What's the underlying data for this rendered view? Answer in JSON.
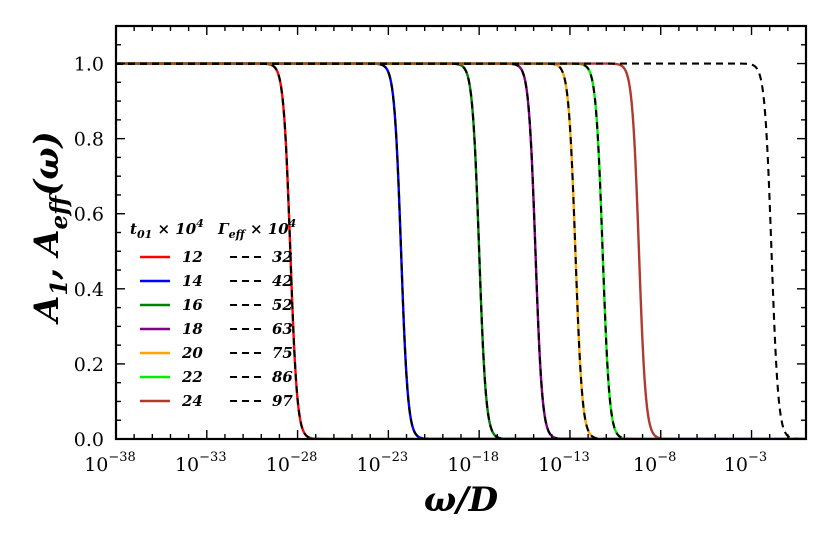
{
  "chart_data": {
    "type": "line",
    "xscale": "log10",
    "xlabel": "ω/D",
    "ylabel_main": "A",
    "ylabel_sub1": "1",
    "ylabel_mid": ", A",
    "ylabel_sub2": "eff",
    "ylabel_tail": "(ω)",
    "x_log_range": [
      -38,
      0
    ],
    "ylim": [
      0,
      1.1
    ],
    "x_tick_exponents": [
      "−38",
      "−33",
      "−28",
      "−23",
      "−18",
      "−13",
      "−8",
      "−3"
    ],
    "x_tick_base": "10",
    "y_ticks": [
      "0.0",
      "0.2",
      "0.4",
      "0.6",
      "0.8",
      "1.0"
    ],
    "legend": {
      "col1_header": {
        "main": "t",
        "sub": "01",
        "mid": " × 10",
        "sup": "4"
      },
      "col2_header": {
        "main": "Γ",
        "sub": "eff",
        "mid": " × 10",
        "sup": "4"
      },
      "col1_values": [
        "12",
        "14",
        "16",
        "18",
        "20",
        "22",
        "24"
      ],
      "col2_values": [
        "32",
        "42",
        "52",
        "63",
        "75",
        "86",
        "97"
      ]
    },
    "series": [
      {
        "name": "t01×10^4 = 12",
        "color": "#ff0000",
        "style": "solid",
        "log_halfpoint": -28.4,
        "width": 0.43
      },
      {
        "name": "t01×10^4 = 14",
        "color": "#0000ff",
        "style": "solid",
        "log_halfpoint": -22.3,
        "width": 0.43
      },
      {
        "name": "t01×10^4 = 16",
        "color": "#008000",
        "style": "solid",
        "log_halfpoint": -18.0,
        "width": 0.43
      },
      {
        "name": "t01×10^4 = 18",
        "color": "#800080",
        "style": "solid",
        "log_halfpoint": -14.9,
        "width": 0.43
      },
      {
        "name": "t01×10^4 = 20",
        "color": "#ffa500",
        "style": "solid",
        "log_halfpoint": -12.7,
        "width": 0.43
      },
      {
        "name": "t01×10^4 = 22",
        "color": "#00ee00",
        "style": "solid",
        "log_halfpoint": -11.2,
        "width": 0.43
      },
      {
        "name": "t01×10^4 = 24",
        "color": "#b03a2e",
        "style": "solid",
        "log_halfpoint": -9.2,
        "width": 0.43
      },
      {
        "name": "Γeff×10^4 = 32",
        "color": "#000000",
        "style": "dashed",
        "log_halfpoint": -28.4,
        "width": 0.43
      },
      {
        "name": "Γeff×10^4 = 42",
        "color": "#000000",
        "style": "dashed",
        "log_halfpoint": -22.3,
        "width": 0.43
      },
      {
        "name": "Γeff×10^4 = 52",
        "color": "#000000",
        "style": "dashed",
        "log_halfpoint": -18.0,
        "width": 0.43
      },
      {
        "name": "Γeff×10^4 = 63",
        "color": "#000000",
        "style": "dashed",
        "log_halfpoint": -14.9,
        "width": 0.43
      },
      {
        "name": "Γeff×10^4 = 75",
        "color": "#000000",
        "style": "dashed",
        "log_halfpoint": -12.7,
        "width": 0.43
      },
      {
        "name": "Γeff×10^4 = 86",
        "color": "#000000",
        "style": "dashed",
        "log_halfpoint": -11.2,
        "width": 0.43
      },
      {
        "name": "Γeff×10^4 = 97",
        "color": "#000000",
        "style": "dashed",
        "log_halfpoint": -1.9,
        "width": 0.43
      }
    ]
  }
}
